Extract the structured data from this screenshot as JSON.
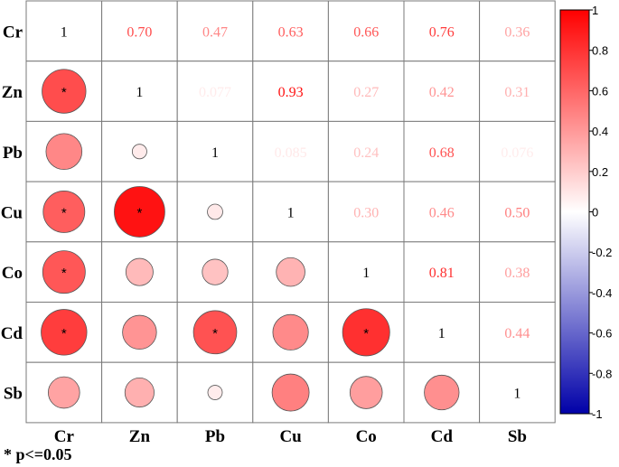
{
  "chart_data": {
    "type": "heatmap",
    "title": "",
    "variables": [
      "Cr",
      "Zn",
      "Pb",
      "Cu",
      "Co",
      "Cd",
      "Sb"
    ],
    "matrix": [
      [
        1,
        0.7,
        0.47,
        0.63,
        0.66,
        0.76,
        0.36
      ],
      [
        0.7,
        1,
        0.077,
        0.93,
        0.27,
        0.42,
        0.31
      ],
      [
        0.47,
        0.077,
        1,
        0.085,
        0.24,
        0.68,
        0.076
      ],
      [
        0.63,
        0.93,
        0.085,
        1,
        0.3,
        0.46,
        0.5
      ],
      [
        0.66,
        0.27,
        0.24,
        0.3,
        1,
        0.81,
        0.38
      ],
      [
        0.76,
        0.42,
        0.68,
        0.46,
        0.81,
        1,
        0.44
      ],
      [
        0.36,
        0.31,
        0.076,
        0.5,
        0.38,
        0.44,
        1
      ]
    ],
    "upper_labels": [
      [
        "",
        "0.70",
        "0.47",
        "0.63",
        "0.66",
        "0.76",
        "0.36"
      ],
      [
        "",
        "",
        "0.077",
        "0.93",
        "0.27",
        "0.42",
        "0.31"
      ],
      [
        "",
        "",
        "",
        "0.085",
        "0.24",
        "0.68",
        "0.076"
      ],
      [
        "",
        "",
        "",
        "",
        "0.30",
        "0.46",
        "0.50"
      ],
      [
        "",
        "",
        "",
        "",
        "",
        "0.81",
        "0.38"
      ],
      [
        "",
        "",
        "",
        "",
        "",
        "",
        "0.44"
      ],
      [
        "",
        "",
        "",
        "",
        "",
        "",
        ""
      ]
    ],
    "diagonal_label": "1",
    "significant": [
      [
        false,
        true,
        false,
        true,
        true,
        true,
        false
      ],
      [
        true,
        false,
        false,
        true,
        false,
        false,
        false
      ],
      [
        false,
        false,
        false,
        false,
        false,
        true,
        false
      ],
      [
        true,
        true,
        false,
        false,
        false,
        false,
        false
      ],
      [
        true,
        false,
        false,
        false,
        false,
        true,
        false
      ],
      [
        true,
        false,
        true,
        false,
        true,
        false,
        false
      ],
      [
        false,
        false,
        false,
        false,
        false,
        false,
        false
      ]
    ],
    "significance_marker": "*",
    "lower_triangle": "circles",
    "upper_triangle": "numbers",
    "colorbar": {
      "range": [
        -1,
        1
      ],
      "ticks": [
        "-1",
        "-0.8",
        "-0.6",
        "-0.4",
        "-0.2",
        "0",
        "0.2",
        "0.4",
        "0.6",
        "0.8",
        "1"
      ],
      "tick_values": [
        -1,
        -0.8,
        -0.6,
        -0.4,
        -0.2,
        0,
        0.2,
        0.4,
        0.6,
        0.8,
        1
      ],
      "colors": {
        "negative": "#0000a8",
        "zero": "#ffffff",
        "positive": "#ff0000"
      }
    },
    "footnote": "* p<=0.05"
  }
}
